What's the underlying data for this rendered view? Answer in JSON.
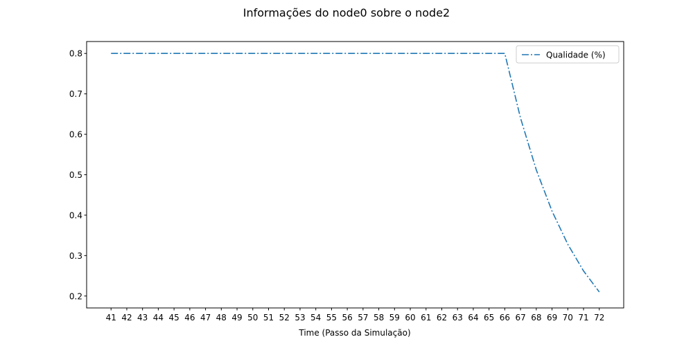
{
  "chart_data": {
    "type": "line",
    "title": "Informações do node0 sobre o node2",
    "xlabel": "Time (Passo da Simulação)",
    "ylabel": "",
    "x": [
      41,
      42,
      43,
      44,
      45,
      46,
      47,
      48,
      49,
      50,
      51,
      52,
      53,
      54,
      55,
      56,
      57,
      58,
      59,
      60,
      61,
      62,
      63,
      64,
      65,
      66,
      67,
      68,
      69,
      70,
      71,
      72
    ],
    "xticks": [
      41,
      42,
      43,
      44,
      45,
      46,
      47,
      48,
      49,
      50,
      51,
      52,
      53,
      54,
      55,
      56,
      57,
      58,
      59,
      60,
      61,
      62,
      63,
      64,
      65,
      66,
      67,
      68,
      69,
      70,
      71,
      72
    ],
    "yticks": [
      0.2,
      0.3,
      0.4,
      0.5,
      0.6,
      0.7,
      0.8
    ],
    "xlim": [
      39.45,
      73.55
    ],
    "ylim": [
      0.1705,
      0.8295
    ],
    "grid": false,
    "legend_position": "top-right",
    "series": [
      {
        "name": "Qualidade (%)",
        "color": "#1f77b4",
        "line_style": "dash-dot",
        "values": [
          0.8,
          0.8,
          0.8,
          0.8,
          0.8,
          0.8,
          0.8,
          0.8,
          0.8,
          0.8,
          0.8,
          0.8,
          0.8,
          0.8,
          0.8,
          0.8,
          0.8,
          0.8,
          0.8,
          0.8,
          0.8,
          0.8,
          0.8,
          0.8,
          0.8,
          0.8,
          0.64,
          0.512,
          0.41,
          0.328,
          0.262,
          0.21
        ]
      }
    ]
  }
}
